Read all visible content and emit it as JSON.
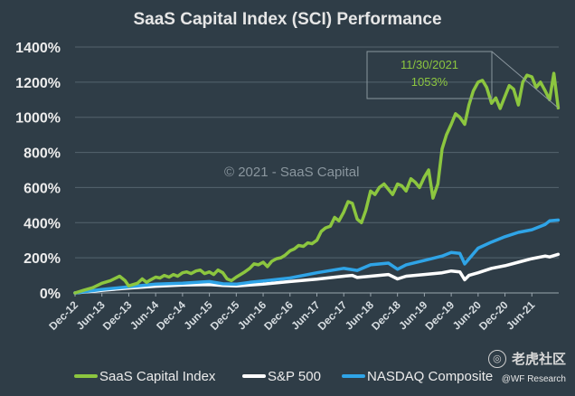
{
  "chart_data": {
    "type": "line",
    "title": "SaaS Capital Index (SCI) Performance",
    "copyright": "© 2021 - SaaS Capital",
    "ylim": [
      0,
      1400
    ],
    "yticks": [
      0,
      200,
      400,
      600,
      800,
      1000,
      1200,
      1400
    ],
    "ytick_labels": [
      "0%",
      "200%",
      "400%",
      "600%",
      "800%",
      "1000%",
      "1200%",
      "1400%"
    ],
    "xlim": [
      2012.92,
      2021.92
    ],
    "xticks": [
      2012.92,
      2013.42,
      2013.92,
      2014.42,
      2014.92,
      2015.42,
      2015.92,
      2016.42,
      2016.92,
      2017.42,
      2017.92,
      2018.42,
      2018.92,
      2019.42,
      2019.92,
      2020.42,
      2020.92,
      2021.42
    ],
    "xtick_labels": [
      "Dec-12",
      "Jun-13",
      "Dec-13",
      "Jun-14",
      "Dec-14",
      "Jun-15",
      "Dec-15",
      "Jun-16",
      "Dec-16",
      "Jun-17",
      "Dec-17",
      "Jun-18",
      "Dec-18",
      "Jun-19",
      "Dec-19",
      "Jun-20",
      "Dec-20",
      "Jun-21"
    ],
    "annotation": {
      "date": "11/30/2021",
      "value_label": "1053%",
      "x": 2021.91,
      "y": 1053
    },
    "series": [
      {
        "name": "SaaS Capital Index",
        "color": "#8cc63f",
        "x": [
          2012.92,
          2013.08,
          2013.25,
          2013.42,
          2013.58,
          2013.75,
          2013.85,
          2013.92,
          2014.08,
          2014.17,
          2014.25,
          2014.33,
          2014.42,
          2014.5,
          2014.58,
          2014.67,
          2014.75,
          2014.83,
          2014.92,
          2015.0,
          2015.08,
          2015.17,
          2015.25,
          2015.33,
          2015.42,
          2015.5,
          2015.58,
          2015.67,
          2015.75,
          2015.83,
          2015.92,
          2016.0,
          2016.08,
          2016.17,
          2016.25,
          2016.33,
          2016.42,
          2016.5,
          2016.58,
          2016.67,
          2016.75,
          2016.83,
          2016.92,
          2017.0,
          2017.08,
          2017.17,
          2017.25,
          2017.33,
          2017.42,
          2017.5,
          2017.58,
          2017.67,
          2017.75,
          2017.83,
          2017.92,
          2018.0,
          2018.08,
          2018.17,
          2018.25,
          2018.33,
          2018.42,
          2018.5,
          2018.58,
          2018.67,
          2018.75,
          2018.83,
          2018.92,
          2019.0,
          2019.08,
          2019.17,
          2019.25,
          2019.33,
          2019.42,
          2019.5,
          2019.58,
          2019.67,
          2019.75,
          2019.83,
          2019.92,
          2020.0,
          2020.08,
          2020.17,
          2020.25,
          2020.33,
          2020.42,
          2020.5,
          2020.58,
          2020.67,
          2020.75,
          2020.83,
          2020.92,
          2021.0,
          2021.08,
          2021.17,
          2021.25,
          2021.33,
          2021.42,
          2021.5,
          2021.58,
          2021.67,
          2021.75,
          2021.83,
          2021.91
        ],
        "y": [
          0,
          15,
          30,
          55,
          70,
          95,
          70,
          40,
          55,
          80,
          60,
          75,
          90,
          85,
          100,
          90,
          105,
          95,
          115,
          120,
          110,
          125,
          130,
          110,
          120,
          105,
          130,
          115,
          80,
          70,
          90,
          105,
          120,
          140,
          165,
          160,
          175,
          150,
          180,
          195,
          200,
          215,
          240,
          250,
          270,
          265,
          285,
          280,
          300,
          350,
          370,
          380,
          430,
          410,
          460,
          520,
          510,
          420,
          400,
          470,
          580,
          560,
          600,
          620,
          590,
          560,
          620,
          610,
          580,
          650,
          630,
          600,
          660,
          700,
          540,
          620,
          820,
          900,
          960,
          1020,
          1000,
          960,
          1070,
          1150,
          1200,
          1210,
          1170,
          1080,
          1110,
          1050,
          1120,
          1180,
          1160,
          1070,
          1200,
          1240,
          1230,
          1170,
          1200,
          1150,
          1100,
          1250,
          1053
        ]
      },
      {
        "name": "S&P 500",
        "color": "#ffffff",
        "x": [
          2012.92,
          2013.42,
          2013.92,
          2014.42,
          2014.92,
          2015.42,
          2015.67,
          2015.92,
          2016.17,
          2016.42,
          2016.92,
          2017.42,
          2017.92,
          2018.08,
          2018.17,
          2018.42,
          2018.75,
          2018.92,
          2019.08,
          2019.42,
          2019.75,
          2019.92,
          2020.08,
          2020.17,
          2020.25,
          2020.42,
          2020.67,
          2020.92,
          2021.17,
          2021.42,
          2021.67,
          2021.75,
          2021.91
        ],
        "y": [
          0,
          15,
          28,
          38,
          45,
          48,
          42,
          40,
          45,
          50,
          65,
          78,
          95,
          100,
          88,
          95,
          105,
          80,
          95,
          105,
          115,
          125,
          120,
          75,
          100,
          115,
          140,
          155,
          175,
          195,
          210,
          205,
          220
        ]
      },
      {
        "name": "NASDAQ Composite",
        "color": "#2fa4e7",
        "x": [
          2012.92,
          2013.42,
          2013.92,
          2014.42,
          2014.92,
          2015.42,
          2015.67,
          2015.92,
          2016.17,
          2016.42,
          2016.92,
          2017.42,
          2017.92,
          2018.17,
          2018.42,
          2018.75,
          2018.92,
          2019.08,
          2019.42,
          2019.75,
          2019.92,
          2020.08,
          2020.17,
          2020.42,
          2020.67,
          2020.92,
          2021.17,
          2021.42,
          2021.67,
          2021.75,
          2021.91
        ],
        "y": [
          0,
          20,
          35,
          50,
          55,
          65,
          52,
          50,
          60,
          68,
          85,
          115,
          140,
          128,
          160,
          170,
          135,
          160,
          185,
          210,
          230,
          225,
          165,
          255,
          290,
          320,
          345,
          360,
          390,
          410,
          415
        ]
      }
    ]
  }
}
